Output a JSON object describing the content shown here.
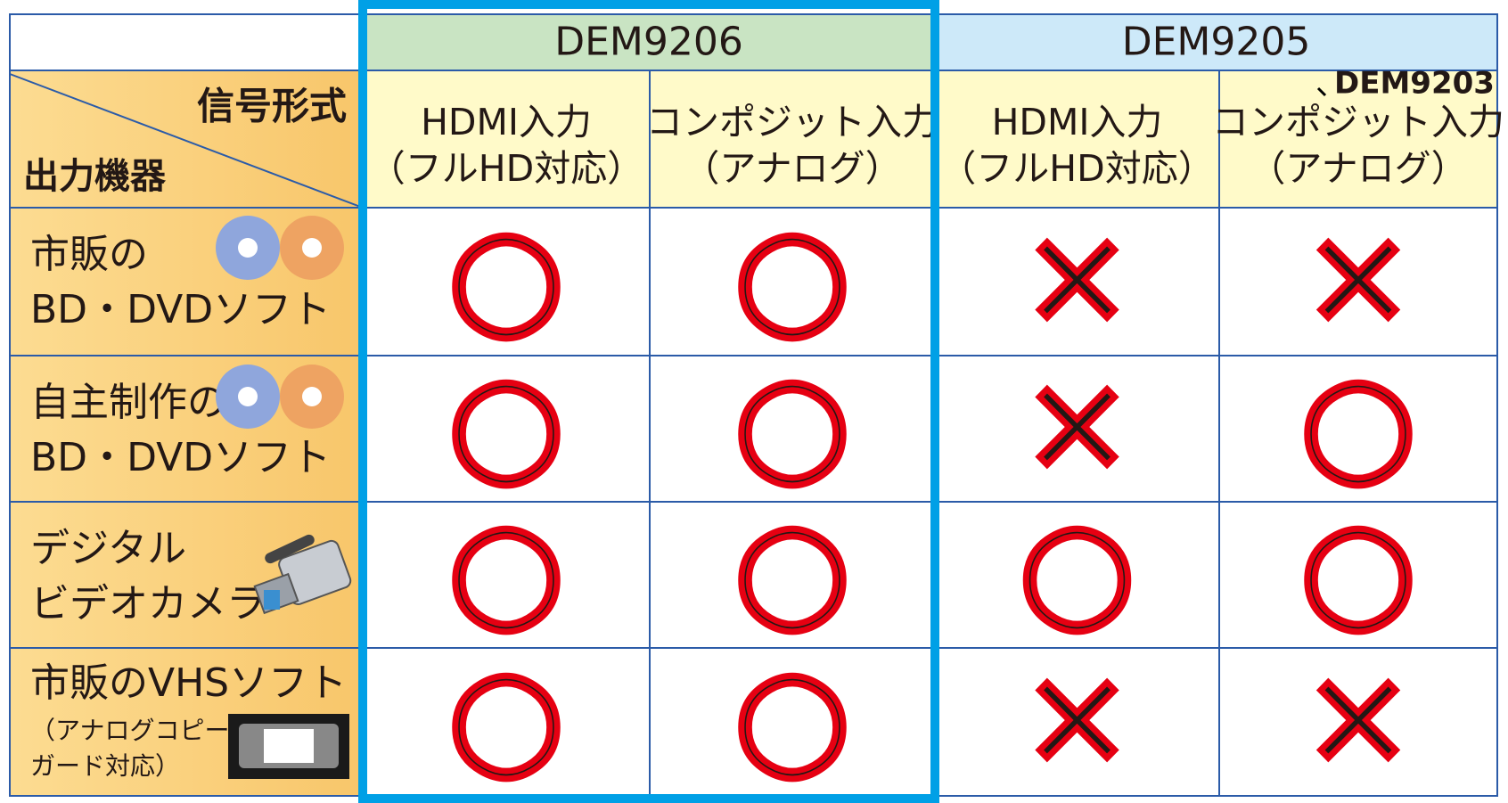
{
  "header": {
    "groups": [
      "DEM9206",
      "DEM9205"
    ],
    "note": "DEM9203",
    "corner": {
      "top": "信号形式",
      "bottom": "出力機器"
    },
    "columns": [
      [
        "HDMI入力",
        "（フルHD対応）"
      ],
      [
        "コンポジット入力",
        "（アナログ）"
      ],
      [
        "HDMI入力",
        "（フルHD対応）"
      ],
      [
        "コンポジット入力",
        "（アナログ）"
      ]
    ]
  },
  "rows": [
    {
      "label": [
        "市販の",
        "BD・DVDソフト"
      ],
      "cells": [
        "○",
        "○",
        "×",
        "×"
      ]
    },
    {
      "label": [
        "自主制作の",
        "BD・DVDソフト"
      ],
      "cells": [
        "○",
        "○",
        "×",
        "○"
      ]
    },
    {
      "label": [
        "デジタル",
        "ビデオカメラ"
      ],
      "cells": [
        "○",
        "○",
        "○",
        "○"
      ]
    },
    {
      "label": [
        "市販のVHSソフト",
        "（アナログコピー",
        "ガード対応）"
      ],
      "cells": [
        "○",
        "○",
        "×",
        "×"
      ]
    }
  ]
}
